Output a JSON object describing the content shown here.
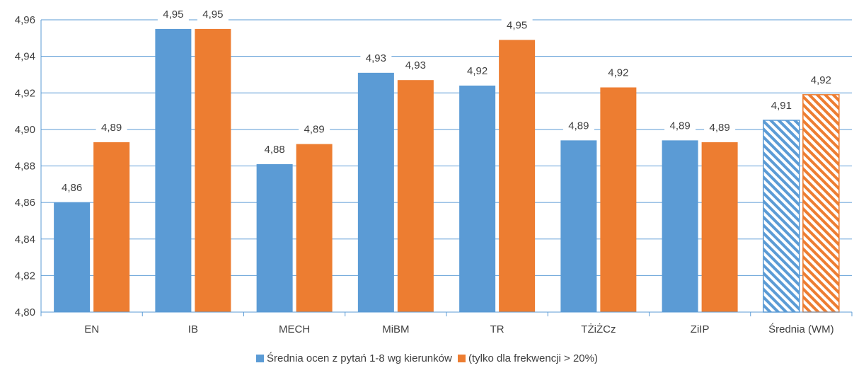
{
  "chart_data": {
    "type": "bar",
    "title": "",
    "xlabel": "",
    "ylabel": "",
    "ylim": [
      4.8,
      4.96
    ],
    "yticks": [
      "4,80",
      "4,82",
      "4,84",
      "4,86",
      "4,88",
      "4,90",
      "4,92",
      "4,94",
      "4,96"
    ],
    "grid": "horizontal",
    "legend_placement": "bottom",
    "categories": [
      "EN",
      "IB",
      "MECH",
      "MiBM",
      "TR",
      "TŻiŻCz",
      "ZiIP",
      "Średnia (WM)"
    ],
    "series": [
      {
        "name": "Średnia ocen z pytań 1-8 wg kierunków",
        "color": "#5b9bd5",
        "values": [
          4.86,
          4.955,
          4.881,
          4.931,
          4.924,
          4.894,
          4.894,
          4.905
        ],
        "labels": [
          "4,86",
          "4,95",
          "4,88",
          "4,93",
          "4,92",
          "4,89",
          "4,89",
          "4,91"
        ]
      },
      {
        "name": "(tylko dla frekwencji > 20%)",
        "color": "#ed7d31",
        "values": [
          4.893,
          4.955,
          4.892,
          4.927,
          4.949,
          4.923,
          4.893,
          4.919
        ],
        "labels": [
          "4,89",
          "4,95",
          "4,89",
          "4,93",
          "4,95",
          "4,92",
          "4,89",
          "4,92"
        ]
      }
    ],
    "hatched_categories": [
      "Średnia (WM)"
    ]
  }
}
